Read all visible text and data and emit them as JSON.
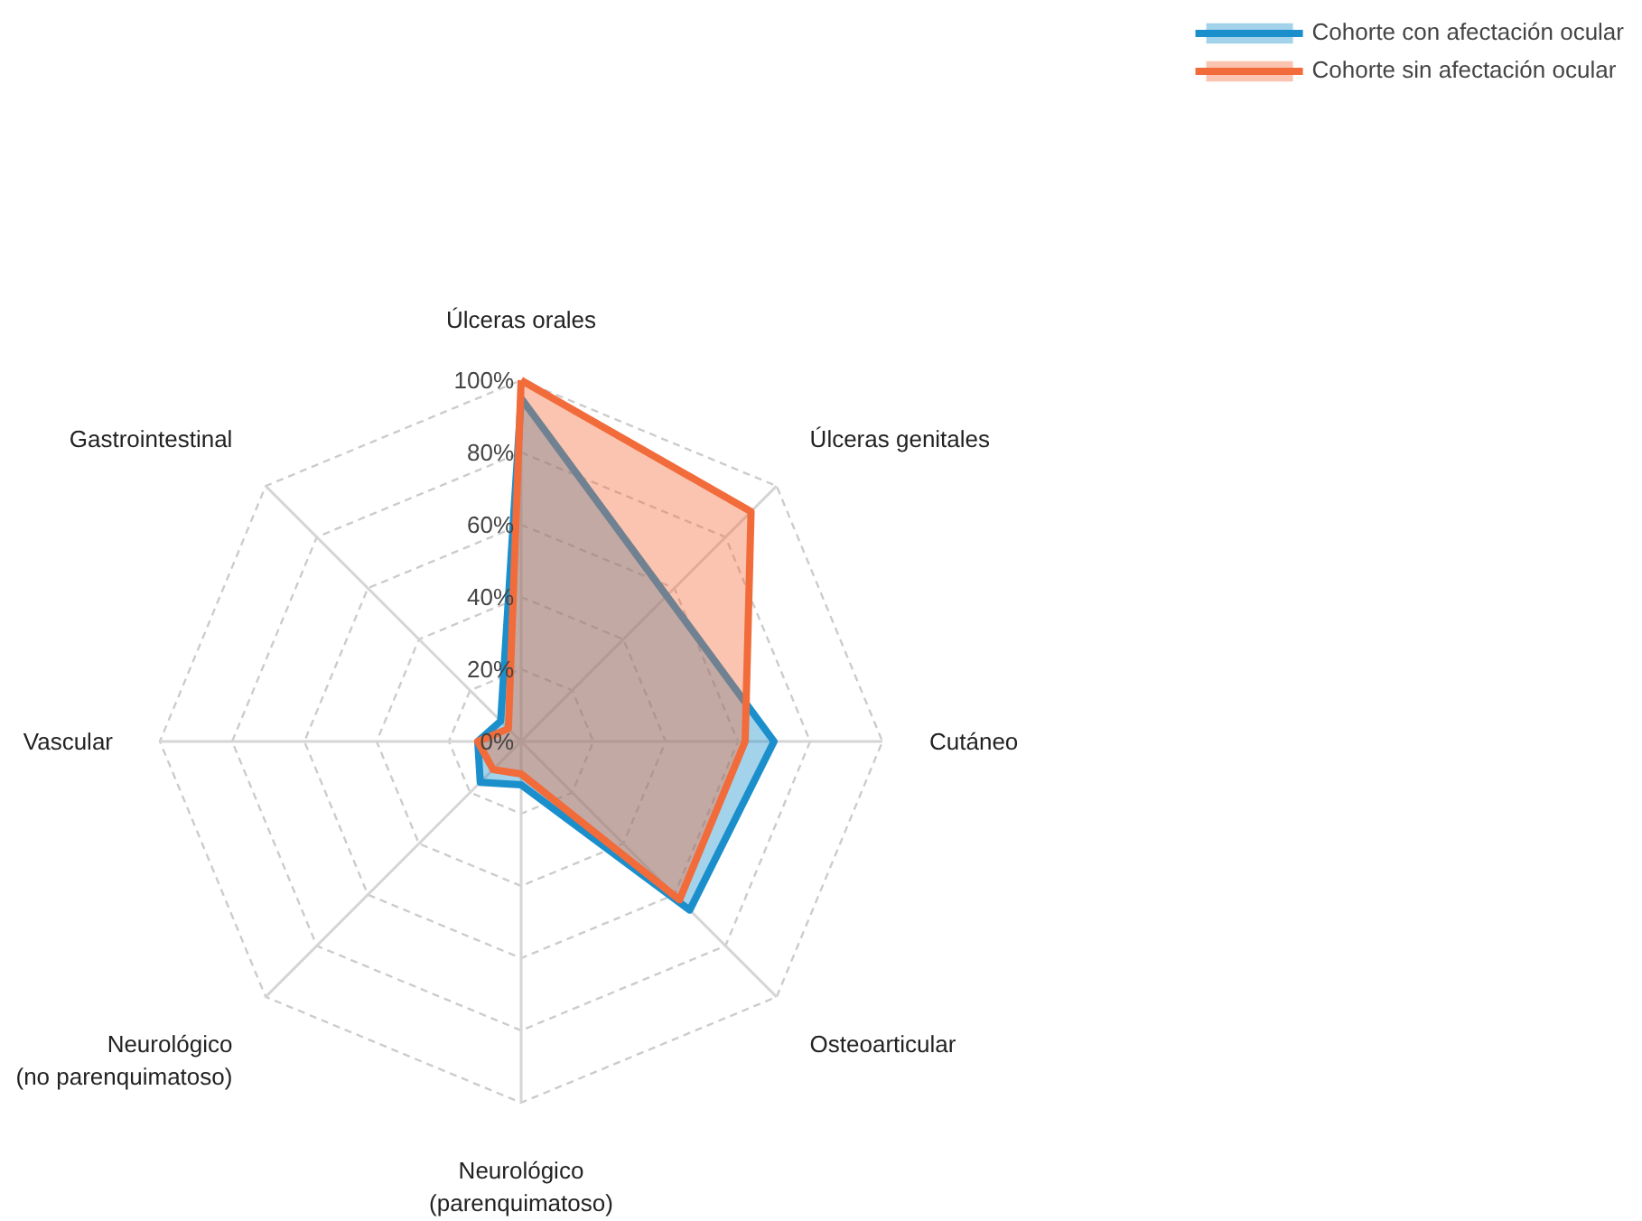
{
  "chart_data": {
    "type": "radar",
    "categories": [
      "Úlceras orales",
      "Úlceras genitales",
      "Cutáneo",
      "Osteoarticular",
      "Neurológico\n(parenquimatoso)",
      "Neurológico\n(no parenquimatoso)",
      "Vascular",
      "Gastrointestinal"
    ],
    "series": [
      {
        "name": "Cohorte con afectación ocular",
        "color": "#1a8fcc",
        "values": [
          95,
          57,
          70,
          66,
          12,
          16,
          12,
          8
        ]
      },
      {
        "name": "Cohorte sin afectación ocular",
        "color": "#f26b3a",
        "values": [
          100,
          90,
          62,
          62,
          9,
          11,
          12,
          5
        ]
      }
    ],
    "ylim": [
      0,
      100
    ],
    "yticks": [
      {
        "value": 0,
        "label": "0%"
      },
      {
        "value": 20,
        "label": "20%"
      },
      {
        "value": 40,
        "label": "40%"
      },
      {
        "value": 60,
        "label": "60%"
      },
      {
        "value": 80,
        "label": "80%"
      },
      {
        "value": 100,
        "label": "100%"
      }
    ],
    "grid": true,
    "legend": "top right",
    "line_style": "solid",
    "marker": "none"
  }
}
